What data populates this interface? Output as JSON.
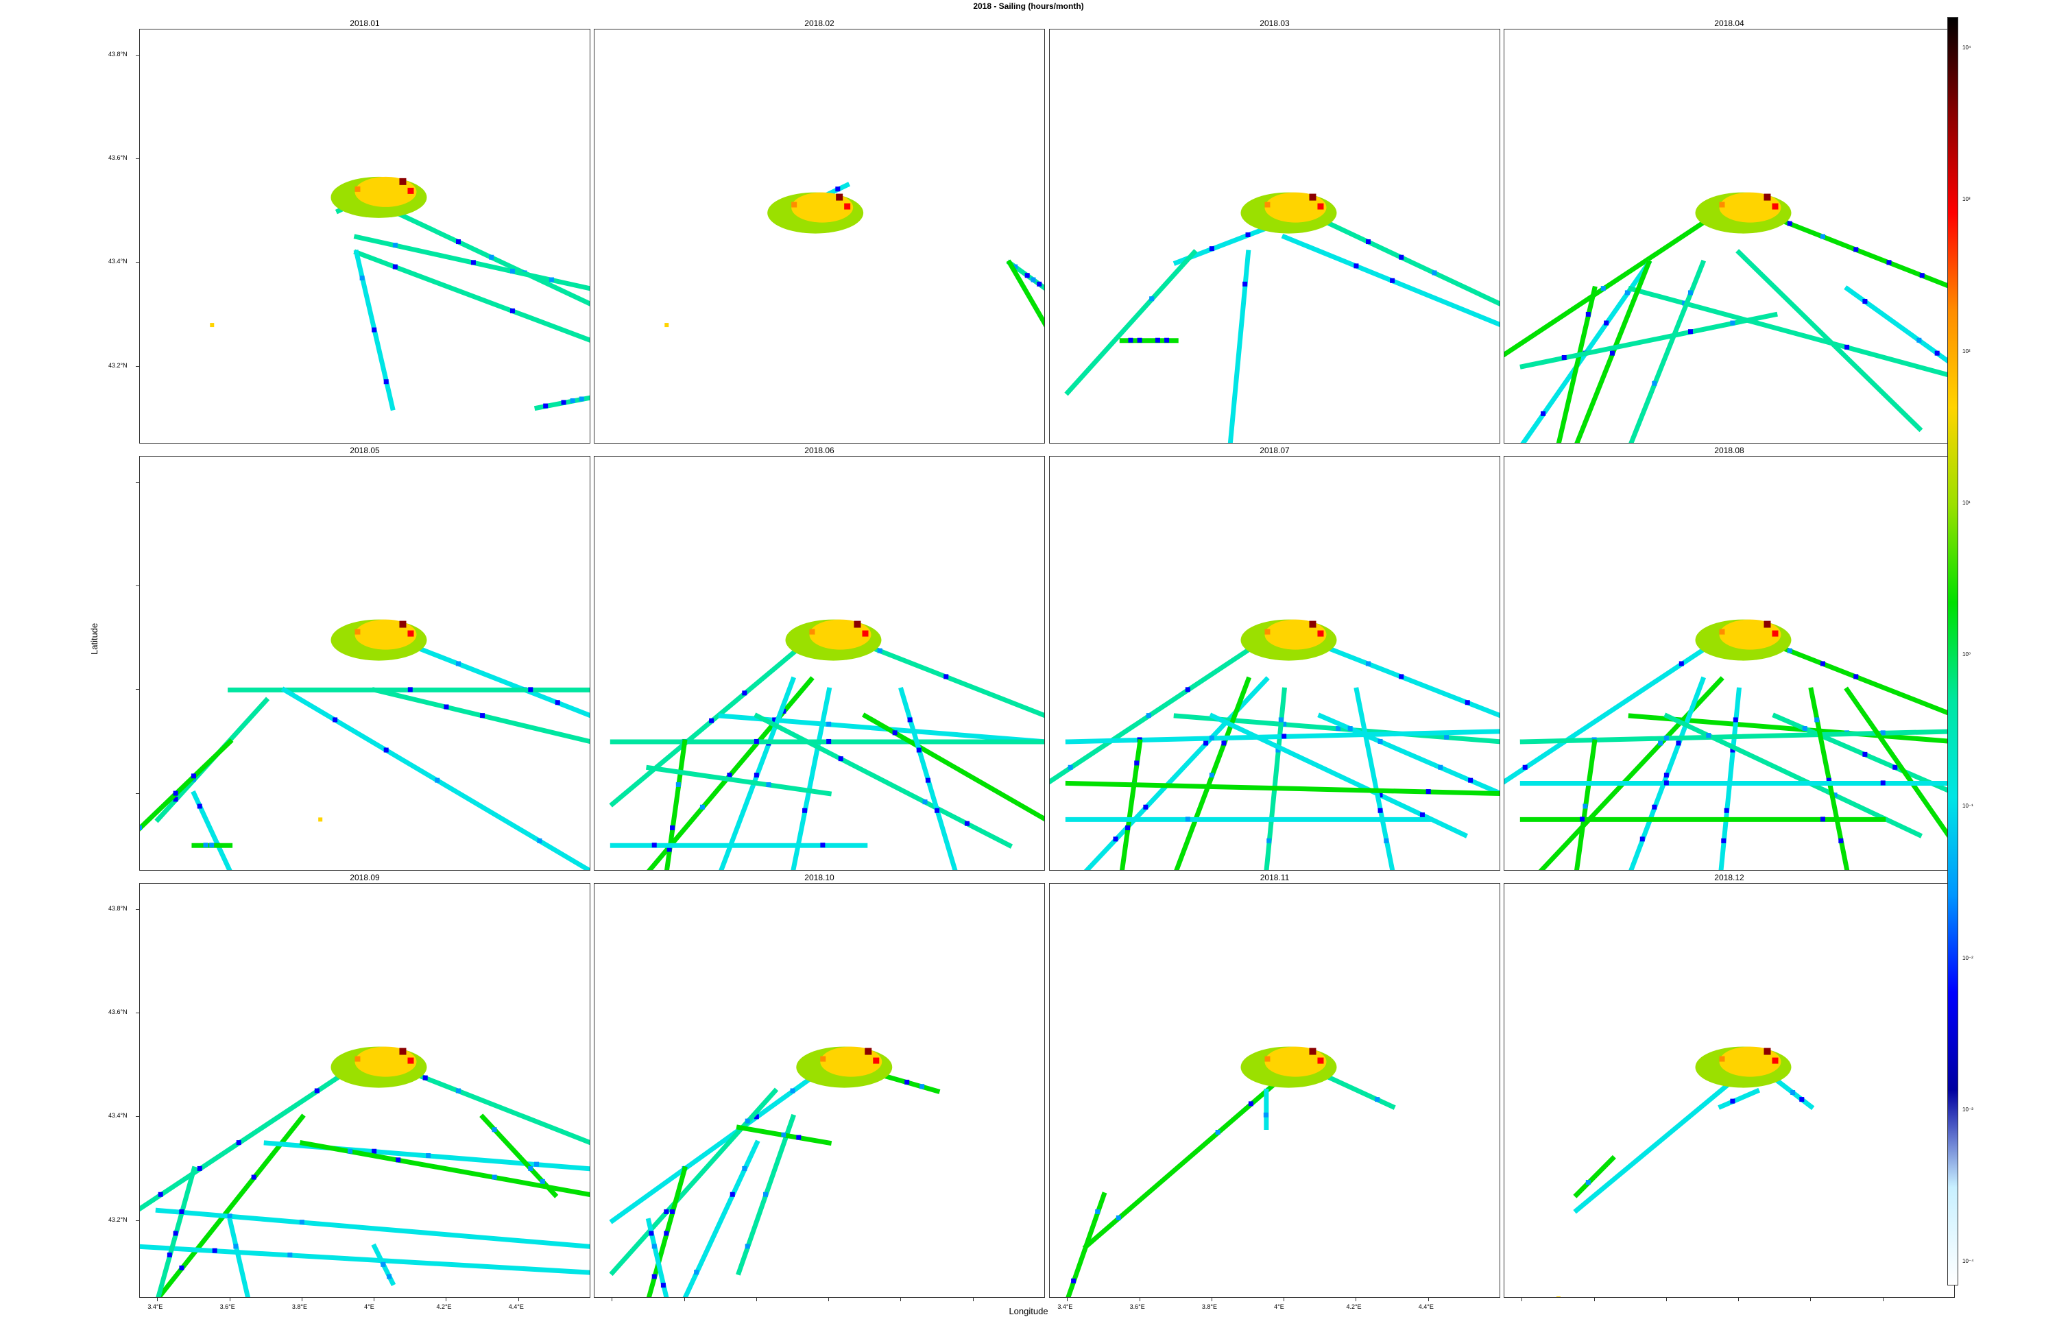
{
  "title": "2018 - Sailing (hours/month)",
  "xlabel": "Longitude",
  "ylabel": "Latitude",
  "x_ticks": [
    "3.4°E",
    "3.6°E",
    "3.8°E",
    "4°E",
    "4.2°E",
    "4.4°E"
  ],
  "y_ticks": [
    "43.8°N",
    "43.6°N",
    "43.4°N",
    "43.2°N"
  ],
  "colorbar": {
    "labels": [
      "10⁴",
      "10³",
      "10²",
      "10¹",
      "10⁰",
      "10⁻¹",
      "10⁻²",
      "10⁻³",
      "10⁻⁴"
    ],
    "colors": [
      "#000000",
      "#8b0000",
      "#ff0000",
      "#ff8c00",
      "#ffd400",
      "#9be000",
      "#00e000",
      "#00e6a0",
      "#00e5e5",
      "#0096ff",
      "#0000ff",
      "#0000a0",
      "#c8f0ff",
      "#ffffff"
    ]
  },
  "chart_data": {
    "type": "heatmap",
    "title": "2018 - Sailing (hours/month)",
    "xlabel": "Longitude",
    "ylabel": "Latitude",
    "xlim": [
      3.35,
      4.6
    ],
    "ylim": [
      43.05,
      43.85
    ],
    "panels": [
      {
        "label": "2018.01",
        "hub": [
          4.05,
          43.55
        ],
        "tracks": [
          [
            4.05,
            43.5,
            4.6,
            43.32
          ],
          [
            3.95,
            43.45,
            4.6,
            43.35
          ],
          [
            3.95,
            43.42,
            4.6,
            43.25
          ],
          [
            3.95,
            43.42,
            4.05,
            43.12
          ],
          [
            4.45,
            43.12,
            4.6,
            43.14
          ],
          [
            3.9,
            43.5,
            4.05,
            43.55
          ]
        ],
        "dots": [
          [
            3.55,
            43.28
          ]
        ]
      },
      {
        "label": "2018.02",
        "hub": [
          4.0,
          43.52
        ],
        "tracks": [
          [
            3.9,
            43.5,
            4.05,
            43.55
          ],
          [
            4.5,
            43.4,
            4.6,
            43.35
          ],
          [
            4.5,
            43.4,
            4.6,
            43.28
          ]
        ],
        "dots": [
          [
            3.55,
            43.28
          ]
        ]
      },
      {
        "label": "2018.03",
        "hub": [
          4.05,
          43.52
        ],
        "tracks": [
          [
            4.05,
            43.5,
            4.6,
            43.32
          ],
          [
            3.7,
            43.4,
            4.0,
            43.48
          ],
          [
            3.4,
            43.15,
            3.75,
            43.42
          ],
          [
            3.9,
            43.42,
            3.85,
            43.05
          ],
          [
            4.0,
            43.45,
            4.6,
            43.28
          ],
          [
            3.55,
            43.25,
            3.7,
            43.25
          ]
        ],
        "dots": []
      },
      {
        "label": "2018.04",
        "hub": [
          4.05,
          43.52
        ],
        "tracks": [
          [
            4.05,
            43.5,
            4.6,
            43.35
          ],
          [
            3.3,
            43.2,
            3.95,
            43.5
          ],
          [
            3.4,
            43.05,
            3.75,
            43.4
          ],
          [
            3.7,
            43.35,
            4.6,
            43.18
          ],
          [
            4.0,
            43.42,
            4.5,
            43.08
          ],
          [
            3.6,
            43.35,
            3.5,
            43.05
          ],
          [
            3.75,
            43.4,
            3.55,
            43.05
          ],
          [
            3.9,
            43.4,
            3.7,
            43.05
          ],
          [
            4.3,
            43.35,
            4.6,
            43.2
          ],
          [
            3.4,
            43.2,
            4.1,
            43.3
          ]
        ],
        "dots": []
      },
      {
        "label": "2018.05",
        "hub": [
          4.05,
          43.52
        ],
        "tracks": [
          [
            4.05,
            43.5,
            4.6,
            43.35
          ],
          [
            3.6,
            43.4,
            4.6,
            43.4
          ],
          [
            3.4,
            43.15,
            3.7,
            43.38
          ],
          [
            3.75,
            43.4,
            4.6,
            43.05
          ],
          [
            3.5,
            43.2,
            3.6,
            43.05
          ],
          [
            3.3,
            43.1,
            3.6,
            43.3
          ],
          [
            4.0,
            43.4,
            4.6,
            43.3
          ],
          [
            3.5,
            43.1,
            3.6,
            43.1
          ]
        ],
        "dots": [
          [
            3.85,
            43.15
          ]
        ]
      },
      {
        "label": "2018.06",
        "hub": [
          4.05,
          43.52
        ],
        "tracks": [
          [
            4.05,
            43.5,
            4.6,
            43.35
          ],
          [
            3.4,
            43.18,
            3.95,
            43.5
          ],
          [
            3.5,
            43.05,
            3.95,
            43.42
          ],
          [
            3.7,
            43.35,
            4.6,
            43.3
          ],
          [
            3.9,
            43.42,
            3.7,
            43.05
          ],
          [
            4.0,
            43.4,
            3.9,
            43.05
          ],
          [
            3.4,
            43.3,
            4.6,
            43.3
          ],
          [
            4.1,
            43.35,
            4.6,
            43.15
          ],
          [
            3.8,
            43.35,
            4.5,
            43.1
          ],
          [
            3.6,
            43.3,
            3.55,
            43.05
          ],
          [
            3.4,
            43.1,
            4.1,
            43.1
          ],
          [
            4.2,
            43.4,
            4.35,
            43.05
          ],
          [
            3.5,
            43.25,
            4.0,
            43.2
          ]
        ],
        "dots": []
      },
      {
        "label": "2018.07",
        "hub": [
          4.05,
          43.52
        ],
        "tracks": [
          [
            4.05,
            43.5,
            4.6,
            43.35
          ],
          [
            3.3,
            43.2,
            3.95,
            43.5
          ],
          [
            3.45,
            43.05,
            3.95,
            43.42
          ],
          [
            3.7,
            43.35,
            4.6,
            43.3
          ],
          [
            3.9,
            43.42,
            3.7,
            43.05
          ],
          [
            4.0,
            43.4,
            3.95,
            43.05
          ],
          [
            3.4,
            43.3,
            4.6,
            43.32
          ],
          [
            4.1,
            43.35,
            4.6,
            43.2
          ],
          [
            3.8,
            43.35,
            4.5,
            43.12
          ],
          [
            3.6,
            43.3,
            3.55,
            43.05
          ],
          [
            3.4,
            43.15,
            4.4,
            43.15
          ],
          [
            4.2,
            43.4,
            4.3,
            43.05
          ],
          [
            3.4,
            43.22,
            4.6,
            43.2
          ]
        ],
        "dots": []
      },
      {
        "label": "2018.08",
        "hub": [
          4.05,
          43.52
        ],
        "tracks": [
          [
            4.05,
            43.5,
            4.6,
            43.35
          ],
          [
            3.3,
            43.2,
            3.95,
            43.5
          ],
          [
            3.45,
            43.05,
            3.95,
            43.42
          ],
          [
            3.7,
            43.35,
            4.6,
            43.3
          ],
          [
            3.9,
            43.42,
            3.7,
            43.05
          ],
          [
            4.0,
            43.4,
            3.95,
            43.05
          ],
          [
            3.4,
            43.3,
            4.6,
            43.32
          ],
          [
            4.1,
            43.35,
            4.6,
            43.2
          ],
          [
            3.8,
            43.35,
            4.5,
            43.12
          ],
          [
            3.6,
            43.3,
            3.55,
            43.05
          ],
          [
            3.4,
            43.15,
            4.4,
            43.15
          ],
          [
            4.2,
            43.4,
            4.3,
            43.05
          ],
          [
            4.3,
            43.4,
            4.6,
            43.1
          ],
          [
            3.4,
            43.22,
            4.6,
            43.22
          ]
        ],
        "dots": []
      },
      {
        "label": "2018.09",
        "hub": [
          4.05,
          43.52
        ],
        "tracks": [
          [
            4.05,
            43.5,
            4.6,
            43.35
          ],
          [
            3.3,
            43.2,
            3.95,
            43.5
          ],
          [
            3.4,
            43.05,
            3.8,
            43.4
          ],
          [
            3.7,
            43.35,
            4.6,
            43.3
          ],
          [
            3.4,
            43.22,
            4.6,
            43.15
          ],
          [
            3.6,
            43.2,
            3.65,
            43.05
          ],
          [
            3.8,
            43.35,
            4.6,
            43.25
          ],
          [
            3.35,
            43.15,
            4.6,
            43.1
          ],
          [
            4.3,
            43.4,
            4.5,
            43.25
          ],
          [
            4.0,
            43.15,
            4.05,
            43.08
          ],
          [
            3.5,
            43.3,
            3.4,
            43.05
          ]
        ],
        "dots": []
      },
      {
        "label": "2018.10",
        "hub": [
          4.08,
          43.52
        ],
        "tracks": [
          [
            4.05,
            43.5,
            4.3,
            43.45
          ],
          [
            3.4,
            43.2,
            4.0,
            43.5
          ],
          [
            3.4,
            43.1,
            3.85,
            43.45
          ],
          [
            3.6,
            43.3,
            3.5,
            43.05
          ],
          [
            3.8,
            43.35,
            3.6,
            43.05
          ],
          [
            3.9,
            43.4,
            3.75,
            43.1
          ],
          [
            3.75,
            43.38,
            4.0,
            43.35
          ],
          [
            3.5,
            43.2,
            3.55,
            43.05
          ]
        ],
        "dots": []
      },
      {
        "label": "2018.11",
        "hub": [
          4.05,
          43.52
        ],
        "tracks": [
          [
            4.05,
            43.5,
            4.3,
            43.42
          ],
          [
            3.45,
            43.15,
            4.0,
            43.48
          ],
          [
            3.5,
            43.25,
            3.4,
            43.05
          ],
          [
            3.95,
            43.45,
            3.95,
            43.38
          ]
        ],
        "dots": []
      },
      {
        "label": "2018.12",
        "hub": [
          4.05,
          43.52
        ],
        "tracks": [
          [
            4.05,
            43.5,
            4.2,
            43.42
          ],
          [
            3.55,
            43.22,
            4.0,
            43.48
          ],
          [
            3.65,
            43.32,
            3.55,
            43.25
          ],
          [
            4.05,
            43.45,
            3.95,
            43.42
          ]
        ],
        "dots": [
          [
            3.5,
            43.05
          ]
        ]
      }
    ]
  }
}
